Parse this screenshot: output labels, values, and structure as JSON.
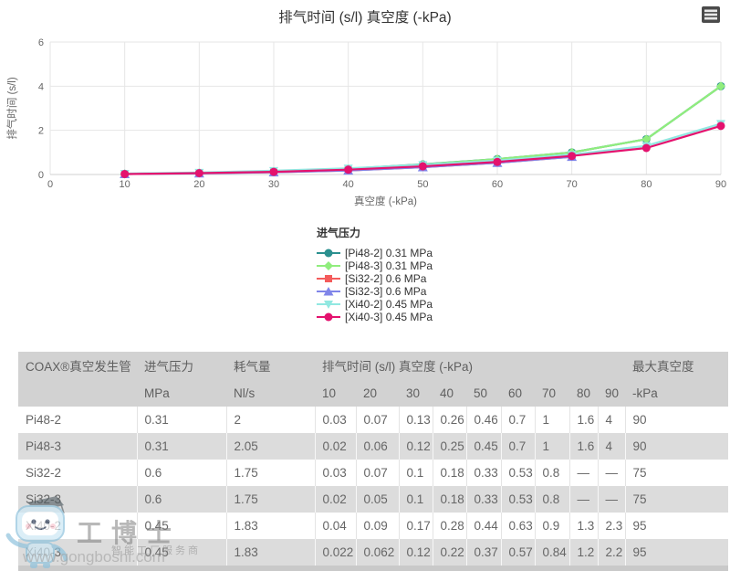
{
  "chart": {
    "title": "排气时间 (s/l) 真空度 (-kPa)",
    "x_title": "真空度 (-kPa)",
    "y_title": "排气时间 (s/l)",
    "legend_title": "进气压力",
    "menu_icon": "hamburger-menu-icon",
    "colors": {
      "title_text": "#333333",
      "axis_text": "#666666",
      "grid": "#e6e6e6",
      "axis_line": "#d0d0d0"
    }
  },
  "chart_data": {
    "type": "line",
    "title": "排气时间 (s/l) 真空度 (-kPa)",
    "xlabel": "真空度 (-kPa)",
    "ylabel": "排气时间 (s/l)",
    "x": [
      10,
      20,
      30,
      40,
      50,
      60,
      70,
      80,
      90
    ],
    "xlim": [
      0,
      90
    ],
    "ylim": [
      0,
      6
    ],
    "xticks": [
      0,
      10,
      20,
      30,
      40,
      50,
      60,
      70,
      80,
      90
    ],
    "yticks": [
      0,
      2,
      4,
      6
    ],
    "grid": true,
    "legend_position": "bottom-left",
    "series": [
      {
        "name": "Pi48-2",
        "legend_label": "[Pi48-2] 0.31 MPa",
        "color": "#2b908f",
        "marker": "circle",
        "values": [
          0.03,
          0.07,
          0.13,
          0.26,
          0.46,
          0.7,
          1,
          1.6,
          4
        ]
      },
      {
        "name": "Pi48-3",
        "legend_label": "[Pi48-3] 0.31 MPa",
        "color": "#90ed7d",
        "marker": "diamond",
        "values": [
          0.02,
          0.06,
          0.12,
          0.25,
          0.45,
          0.7,
          1,
          1.6,
          4
        ]
      },
      {
        "name": "Si32-2",
        "legend_label": "[Si32-2] 0.6 MPa",
        "color": "#f45b5b",
        "marker": "square",
        "values": [
          0.03,
          0.07,
          0.1,
          0.18,
          0.33,
          0.53,
          0.8,
          null,
          null
        ]
      },
      {
        "name": "Si32-3",
        "legend_label": "[Si32-3] 0.6 MPa",
        "color": "#8085e9",
        "marker": "triangle",
        "values": [
          0.02,
          0.05,
          0.1,
          0.18,
          0.33,
          0.53,
          0.8,
          null,
          null
        ]
      },
      {
        "name": "Xi40-2",
        "legend_label": "[Xi40-2] 0.45 MPa",
        "color": "#91e8e1",
        "marker": "triangle-down",
        "values": [
          0.04,
          0.09,
          0.17,
          0.28,
          0.44,
          0.63,
          0.9,
          1.3,
          2.3
        ]
      },
      {
        "name": "Xi40-3",
        "legend_label": "[Xi40-3] 0.45 MPa",
        "color": "#e4126e",
        "marker": "circle",
        "values": [
          0.022,
          0.062,
          0.12,
          0.22,
          0.37,
          0.57,
          0.84,
          1.2,
          2.2
        ]
      }
    ]
  },
  "table": {
    "header_row1": [
      {
        "label": "COAX®真空发生管",
        "colspan": 1
      },
      {
        "label": "进气压力",
        "colspan": 1
      },
      {
        "label": "耗气量",
        "colspan": 1
      },
      {
        "label": "排气时间 (s/l) 真空度 (-kPa)",
        "colspan": 9
      },
      {
        "label": "最大真空度",
        "colspan": 1
      }
    ],
    "header_row2": [
      "",
      "MPa",
      "Nl/s",
      "10",
      "20",
      "30",
      "40",
      "50",
      "60",
      "70",
      "80",
      "90",
      "-kPa"
    ],
    "rows": [
      [
        "Pi48-2",
        "0.31",
        "2",
        "0.03",
        "0.07",
        "0.13",
        "0.26",
        "0.46",
        "0.7",
        "1",
        "1.6",
        "4",
        "90"
      ],
      [
        "Pi48-3",
        "0.31",
        "2.05",
        "0.02",
        "0.06",
        "0.12",
        "0.25",
        "0.45",
        "0.7",
        "1",
        "1.6",
        "4",
        "90"
      ],
      [
        "Si32-2",
        "0.6",
        "1.75",
        "0.03",
        "0.07",
        "0.1",
        "0.18",
        "0.33",
        "0.53",
        "0.8",
        "—",
        "—",
        "75"
      ],
      [
        "Si32-3",
        "0.6",
        "1.75",
        "0.02",
        "0.05",
        "0.1",
        "0.18",
        "0.33",
        "0.53",
        "0.8",
        "—",
        "—",
        "75"
      ],
      [
        "Xi40-2",
        "0.45",
        "1.83",
        "0.04",
        "0.09",
        "0.17",
        "0.28",
        "0.44",
        "0.63",
        "0.9",
        "1.3",
        "2.3",
        "95"
      ],
      [
        "Xi40-3",
        "0.45",
        "1.83",
        "0.022",
        "0.062",
        "0.12",
        "0.22",
        "0.37",
        "0.57",
        "0.84",
        "1.2",
        "2.2",
        "95"
      ]
    ],
    "colors": {
      "header_bg": "#d2d2d2",
      "row_alt_bg": "#dcdcdc",
      "text": "#666666",
      "bottom_strip": "#c9c9c9"
    }
  },
  "watermark": {
    "brand": "工博士",
    "tagline": "智能工厂服务商",
    "url": "www.gongboshi.com",
    "mascot_icon": "mascot-robot-icon"
  }
}
